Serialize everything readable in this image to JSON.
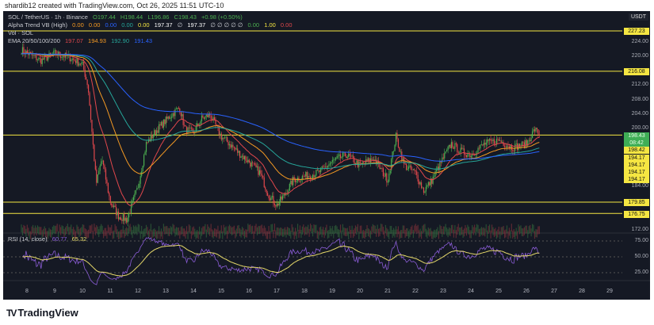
{
  "credit": "shardib12 created with TradingView.com, Oct 26, 2025 11:51 UTC-10",
  "legend": {
    "symbol": "SOL / TetherUS · 1h · Binance",
    "open": "O197.44",
    "high": "H198.44",
    "low": "L196.86",
    "close": "C198.43",
    "change": "+0.98 (+0.50%)",
    "alpha_trend": "Alpha Trend VB (High)",
    "alpha_values": [
      "0.00",
      "0.00",
      "0.00",
      "0.00",
      "0.00",
      "197.37",
      "∅",
      "197.37",
      "∅ ∅ ∅ ∅ ∅",
      "0.00",
      "1.00",
      "0.00"
    ],
    "vol": "Vol · SOL",
    "ema": "EMA 20/50/100/200",
    "ema_values": [
      "197.07",
      "194.93",
      "192.90",
      "191.43"
    ]
  },
  "price_axis": {
    "currency": "USDT",
    "ticks": [
      "224.00",
      "220.00",
      "212.00",
      "208.00",
      "204.00",
      "200.00",
      "184.00",
      "172.00"
    ],
    "tick_values": [
      224,
      220,
      212,
      208,
      204,
      200,
      184,
      172
    ],
    "levels": [
      227.23,
      216.08,
      198.42,
      179.85,
      176.75
    ],
    "labels": {
      "l227": "227.23",
      "l216": "216.08",
      "current": "198.43",
      "countdown": "08:42",
      "l198": "198.42",
      "l194": [
        "194.17",
        "194.17",
        "194.17",
        "194.17"
      ],
      "l179": "179.85",
      "l176": "176.75"
    }
  },
  "rsi": {
    "label": "RSI (14, close)",
    "value1": "60.77",
    "value2": "65.32",
    "ticks": [
      "75.00",
      "50.00",
      "25.00"
    ]
  },
  "time_axis": [
    "8",
    "9",
    "10",
    "11",
    "12",
    "13",
    "14",
    "15",
    "16",
    "17",
    "18",
    "19",
    "20",
    "21",
    "22",
    "23",
    "24",
    "25",
    "26",
    "27",
    "28",
    "29"
  ],
  "price_path": [
    [
      7.8,
      222
    ],
    [
      8.5,
      219
    ],
    [
      9,
      221
    ],
    [
      9.5,
      220
    ],
    [
      10,
      218
    ],
    [
      10.2,
      212
    ],
    [
      10.5,
      185
    ],
    [
      10.7,
      192
    ],
    [
      11,
      180
    ],
    [
      11.3,
      176
    ],
    [
      11.6,
      175
    ],
    [
      12,
      184
    ],
    [
      12.3,
      196
    ],
    [
      12.7,
      200
    ],
    [
      13.2,
      204
    ],
    [
      13.5,
      206
    ],
    [
      13.7,
      200
    ],
    [
      14,
      199
    ],
    [
      14.3,
      203
    ],
    [
      14.6,
      204
    ],
    [
      15,
      198
    ],
    [
      15.3,
      196
    ],
    [
      15.7,
      193
    ],
    [
      16,
      191
    ],
    [
      16.4,
      188
    ],
    [
      16.7,
      182
    ],
    [
      17,
      179
    ],
    [
      17.3,
      182
    ],
    [
      17.6,
      186
    ],
    [
      18,
      187
    ],
    [
      18.5,
      188
    ],
    [
      19,
      191
    ],
    [
      19.5,
      193
    ],
    [
      20,
      190
    ],
    [
      20.5,
      192
    ],
    [
      21,
      186
    ],
    [
      21.3,
      198
    ],
    [
      21.6,
      190
    ],
    [
      22,
      188
    ],
    [
      22.3,
      183
    ],
    [
      22.6,
      186
    ],
    [
      23,
      192
    ],
    [
      23.3,
      196
    ],
    [
      23.6,
      194
    ],
    [
      24,
      193
    ],
    [
      24.5,
      196
    ],
    [
      25,
      197
    ],
    [
      25.5,
      195
    ],
    [
      26,
      196
    ],
    [
      26.3,
      200
    ],
    [
      26.5,
      198.4
    ]
  ],
  "colors": {
    "up": "#4caf50",
    "down": "#e0474c",
    "level": "#f5e642",
    "rsi": "#8a5cd6",
    "rsi_ma": "#e6d96a",
    "ema_fast": "#e0474c",
    "ema_mid": "#f59a23",
    "ema_slow": "#26a69a",
    "ema_200": "#2962ff"
  },
  "brand": "TradingView"
}
